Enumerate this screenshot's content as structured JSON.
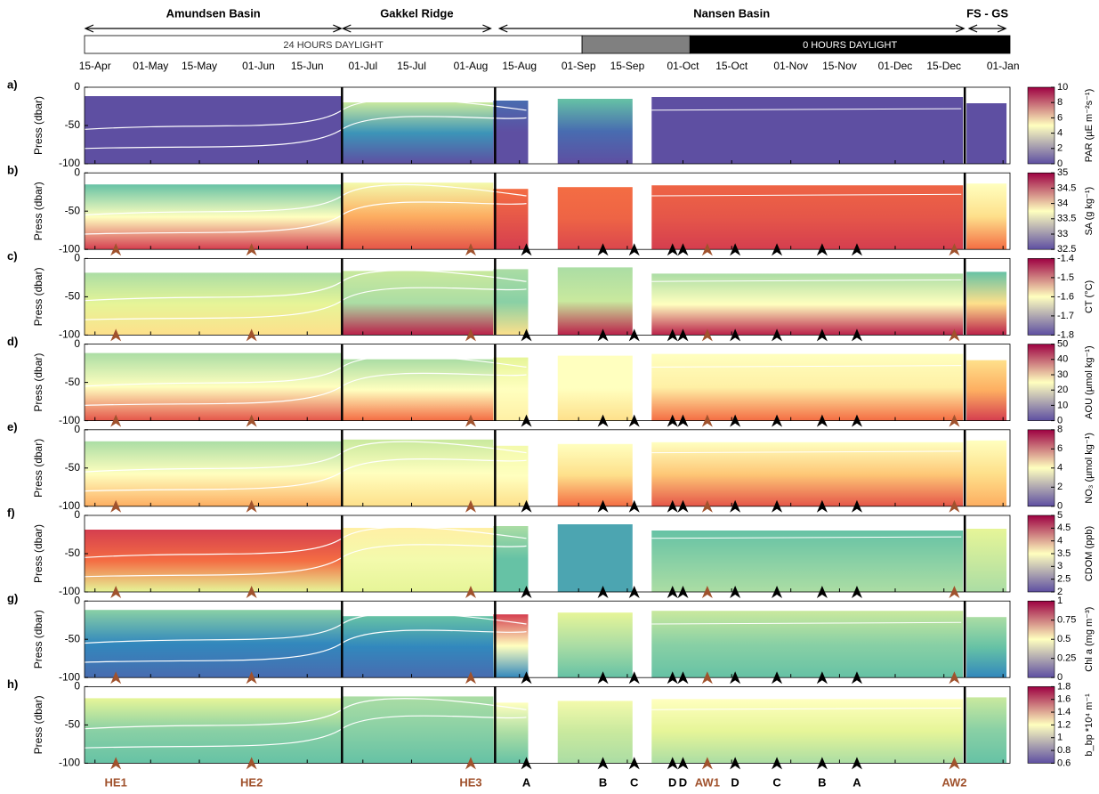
{
  "chart_data": {
    "type": "heatmap",
    "regions": [
      {
        "name": "Amundsen Basin",
        "start": 102,
        "end": 176
      },
      {
        "name": "Gakkel Ridge",
        "start": 176,
        "end": 219
      },
      {
        "name": "Nansen Basin",
        "start": 221,
        "end": 355
      },
      {
        "name": "FS - GS",
        "start": 356,
        "end": 367
      }
    ],
    "daylight": [
      {
        "label": "24 HOURS DAYLIGHT",
        "start": 102,
        "end": 245,
        "color": "#ffffff",
        "text_color": "#333333"
      },
      {
        "start": 245,
        "end": 276,
        "color": "#808080"
      },
      {
        "label": "0 HOURS DAYLIGHT",
        "start": 276,
        "end": 368,
        "color": "#000000",
        "text_color": "#ffffff"
      }
    ],
    "xlim": [
      102,
      368
    ],
    "xticks": [
      {
        "value": 105,
        "label": "15-Apr"
      },
      {
        "value": 121,
        "label": "01-May"
      },
      {
        "value": 135,
        "label": "15-May"
      },
      {
        "value": 152,
        "label": "01-Jun"
      },
      {
        "value": 166,
        "label": "15-Jun"
      },
      {
        "value": 182,
        "label": "01-Jul"
      },
      {
        "value": 196,
        "label": "15-Jul"
      },
      {
        "value": 213,
        "label": "01-Aug"
      },
      {
        "value": 227,
        "label": "15-Aug"
      },
      {
        "value": 244,
        "label": "01-Sep"
      },
      {
        "value": 258,
        "label": "15-Sep"
      },
      {
        "value": 274,
        "label": "01-Oct"
      },
      {
        "value": 288,
        "label": "15-Oct"
      },
      {
        "value": 305,
        "label": "01-Nov"
      },
      {
        "value": 319,
        "label": "15-Nov"
      },
      {
        "value": 335,
        "label": "01-Dec"
      },
      {
        "value": 349,
        "label": "15-Dec"
      },
      {
        "value": 366,
        "label": "01-Jan"
      }
    ],
    "boundaries": [
      176,
      220,
      355
    ],
    "ylabel": "Press (dbar)",
    "ylim": [
      -100,
      0
    ],
    "yticks": [
      0,
      -50,
      -100
    ],
    "colormap": [
      "#5e4fa2",
      "#3288bd",
      "#66c2a5",
      "#abdda4",
      "#e6f598",
      "#ffffbf",
      "#fee08b",
      "#fdae61",
      "#f46d43",
      "#d53e4f",
      "#9e0142"
    ],
    "panels": [
      {
        "label": "a)",
        "colorbar_label": "PAR (µE m⁻²s⁻¹)",
        "clim": [
          0,
          10
        ],
        "cticks": [
          0,
          2,
          4,
          6,
          8,
          10
        ]
      },
      {
        "label": "b)",
        "colorbar_label": "SA (g kg⁻¹)",
        "clim": [
          32.5,
          35
        ],
        "cticks": [
          32.5,
          33,
          33.5,
          34,
          34.5,
          35
        ]
      },
      {
        "label": "c)",
        "colorbar_label": "CT (°C)",
        "clim": [
          -1.8,
          -1.4
        ],
        "cticks": [
          -1.8,
          -1.7,
          -1.6,
          -1.5,
          -1.4
        ]
      },
      {
        "label": "d)",
        "colorbar_label": "AOU (µmol kg⁻¹)",
        "clim": [
          0,
          50
        ],
        "cticks": [
          0,
          10,
          20,
          30,
          40,
          50
        ]
      },
      {
        "label": "e)",
        "colorbar_label": "NO₃ (µmol kg⁻¹)",
        "clim": [
          0,
          8
        ],
        "cticks": [
          0,
          2,
          4,
          6,
          8
        ]
      },
      {
        "label": "f)",
        "colorbar_label": "CDOM (ppb)",
        "clim": [
          2,
          5
        ],
        "cticks": [
          2,
          2.5,
          3,
          3.5,
          4,
          4.5,
          5
        ]
      },
      {
        "label": "g)",
        "colorbar_label": "Chl a (mg m⁻³)",
        "clim": [
          0,
          1
        ],
        "cticks": [
          0,
          0.25,
          0.5,
          0.75,
          1
        ]
      },
      {
        "label": "h)",
        "colorbar_label": "b_bp *10⁴ m⁻¹",
        "clim": [
          0.6,
          1.8
        ],
        "cticks": [
          0.6,
          0.8,
          1,
          1.2,
          1.4,
          1.6,
          1.8
        ]
      }
    ],
    "markers": [
      {
        "label": "HE1",
        "x": 111,
        "color": "#a0522d"
      },
      {
        "label": "HE2",
        "x": 150,
        "color": "#a0522d"
      },
      {
        "label": "HE3",
        "x": 213,
        "color": "#a0522d"
      },
      {
        "label": "A",
        "x": 229,
        "color": "#000000"
      },
      {
        "label": "B",
        "x": 251,
        "color": "#000000"
      },
      {
        "label": "C",
        "x": 260,
        "color": "#000000"
      },
      {
        "label": "D",
        "x": 271,
        "color": "#000000"
      },
      {
        "label": "D",
        "x": 274,
        "color": "#000000"
      },
      {
        "label": "AW1",
        "x": 281,
        "color": "#a0522d"
      },
      {
        "label": "D",
        "x": 289,
        "color": "#000000"
      },
      {
        "label": "C",
        "x": 301,
        "color": "#000000"
      },
      {
        "label": "B",
        "x": 314,
        "color": "#000000"
      },
      {
        "label": "A",
        "x": 324,
        "color": "#000000"
      },
      {
        "label": "AW2",
        "x": 352,
        "color": "#a0522d"
      }
    ]
  }
}
